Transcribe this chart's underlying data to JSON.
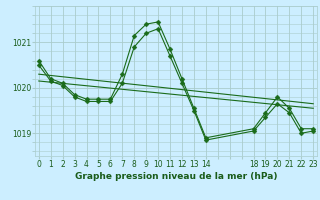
{
  "title": "Graphe pression niveau de la mer (hPa)",
  "bg_color": "#cceeff",
  "grid_color": "#aacccc",
  "line_color": "#1a6b1a",
  "marker": "D",
  "markersize": 2.5,
  "linewidth": 0.8,
  "label_color": "#1a5c1a",
  "series": [
    {
      "x": [
        0,
        1,
        2,
        3,
        4,
        5,
        6,
        7,
        8,
        9,
        10,
        11,
        12,
        13,
        14,
        18,
        19,
        20,
        21,
        22,
        23
      ],
      "y": [
        1020.6,
        1020.2,
        1020.1,
        1019.85,
        1019.75,
        1019.75,
        1019.75,
        1020.3,
        1021.15,
        1021.4,
        1021.45,
        1020.85,
        1020.2,
        1019.55,
        1018.9,
        1019.1,
        1019.45,
        1019.8,
        1019.55,
        1019.1,
        1019.1
      ]
    },
    {
      "x": [
        0,
        1,
        2,
        3,
        4,
        5,
        6,
        7,
        8,
        9,
        10,
        11,
        12,
        13,
        14,
        18,
        19,
        20,
        21,
        22,
        23
      ],
      "y": [
        1020.5,
        1020.15,
        1020.05,
        1019.8,
        1019.7,
        1019.7,
        1019.7,
        1020.1,
        1020.9,
        1021.2,
        1021.3,
        1020.7,
        1020.1,
        1019.5,
        1018.85,
        1019.05,
        1019.35,
        1019.65,
        1019.45,
        1019.0,
        1019.05
      ]
    },
    {
      "x": [
        0,
        23
      ],
      "y": [
        1020.3,
        1019.65
      ]
    },
    {
      "x": [
        0,
        23
      ],
      "y": [
        1020.15,
        1019.55
      ]
    }
  ],
  "xtick_labels": [
    "0",
    "1",
    "2",
    "3",
    "4",
    "5",
    "6",
    "7",
    "8",
    "9",
    "10",
    "11",
    "12",
    "13",
    "14",
    "",
    "",
    "",
    "18",
    "19",
    "20",
    "21",
    "22",
    "23"
  ],
  "yticks": [
    1019,
    1020,
    1021
  ],
  "xlim": [
    -0.3,
    23.3
  ],
  "ylim": [
    1018.5,
    1021.8
  ],
  "tick_fontsize": 5.5,
  "ylabel_fontsize": 6.5
}
